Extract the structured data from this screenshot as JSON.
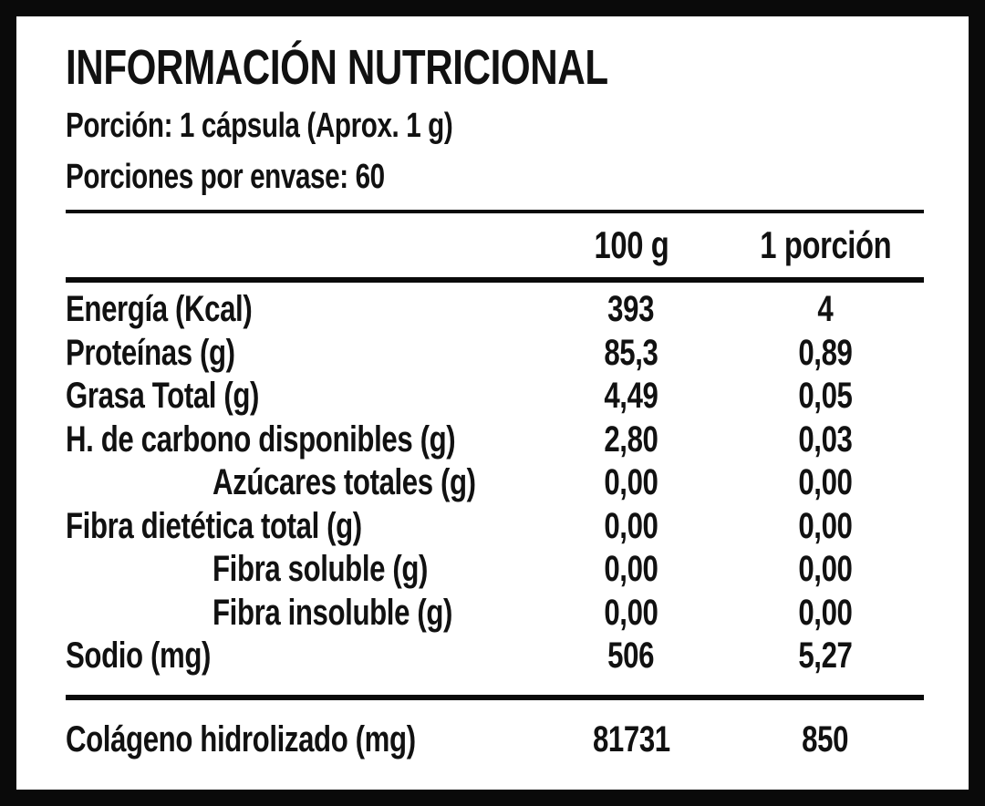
{
  "colors": {
    "frame": "#0a0a0a",
    "panel": "#ffffff",
    "ink": "#111111"
  },
  "label": {
    "title": "INFORMACIÓN NUTRICIONAL",
    "serving": "Porción: 1 cápsula (Aprox. 1 g)",
    "servings_per_container": "Porciones por envase: 60",
    "columns": [
      "100 g",
      "1 porción"
    ],
    "rows": [
      {
        "name": "Energía (Kcal)",
        "per_100g": "393",
        "per_portion": "4"
      },
      {
        "name": "Proteínas (g)",
        "per_100g": "85,3",
        "per_portion": "0,89"
      },
      {
        "name": "Grasa Total (g)",
        "per_100g": "4,49",
        "per_portion": "0,05"
      },
      {
        "name": "H. de carbono disponibles (g)",
        "per_100g": "2,80",
        "per_portion": "0,03"
      },
      {
        "name": "Azúcares totales (g)",
        "per_100g": "0,00",
        "per_portion": "0,00"
      },
      {
        "name": "Fibra dietética total (g)",
        "per_100g": "0,00",
        "per_portion": "0,00"
      },
      {
        "name": "Fibra soluble (g)",
        "per_100g": "0,00",
        "per_portion": "0,00"
      },
      {
        "name": "Fibra insoluble (g)",
        "per_100g": "0,00",
        "per_portion": "0,00"
      },
      {
        "name": "Sodio (mg)",
        "per_100g": "506",
        "per_portion": "5,27"
      }
    ],
    "footer_row": {
      "name": "Colágeno hidrolizado (mg)",
      "per_100g": "81731",
      "per_portion": "850"
    }
  }
}
